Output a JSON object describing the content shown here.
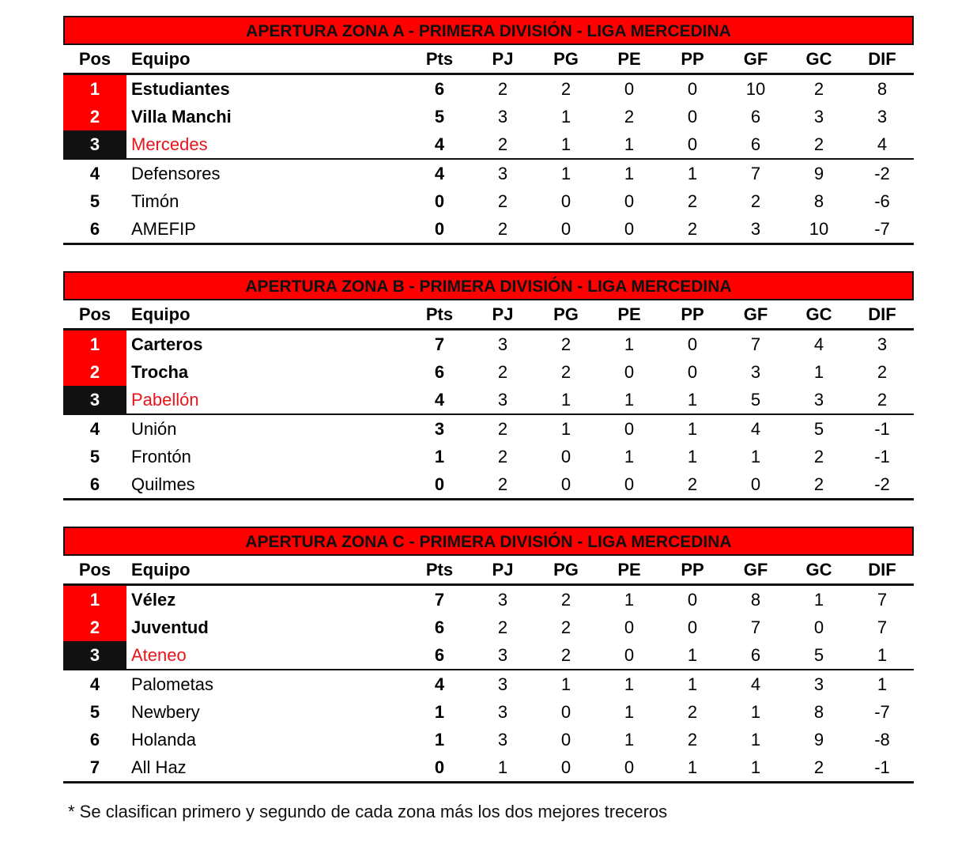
{
  "headers": [
    "Pos",
    "Equipo",
    "Pts",
    "PJ",
    "PG",
    "PE",
    "PP",
    "GF",
    "GC",
    "DIF"
  ],
  "zones": [
    {
      "title": "APERTURA ZONA A - PRIMERA DIVISIÓN - LIGA MERCEDINA",
      "rows": [
        [
          "1",
          "Estudiantes",
          "6",
          "2",
          "2",
          "0",
          "0",
          "10",
          "2",
          "8"
        ],
        [
          "2",
          "Villa Manchi",
          "5",
          "3",
          "1",
          "2",
          "0",
          "6",
          "3",
          "3"
        ],
        [
          "3",
          "Mercedes",
          "4",
          "2",
          "1",
          "1",
          "0",
          "6",
          "2",
          "4"
        ],
        [
          "4",
          "Defensores",
          "4",
          "3",
          "1",
          "1",
          "1",
          "7",
          "9",
          "-2"
        ],
        [
          "5",
          "Timón",
          "0",
          "2",
          "0",
          "0",
          "2",
          "2",
          "8",
          "-6"
        ],
        [
          "6",
          "AMEFIP",
          "0",
          "2",
          "0",
          "0",
          "2",
          "3",
          "10",
          "-7"
        ]
      ]
    },
    {
      "title": "APERTURA ZONA B - PRIMERA DIVISIÓN - LIGA MERCEDINA",
      "rows": [
        [
          "1",
          "Carteros",
          "7",
          "3",
          "2",
          "1",
          "0",
          "7",
          "4",
          "3"
        ],
        [
          "2",
          "Trocha",
          "6",
          "2",
          "2",
          "0",
          "0",
          "3",
          "1",
          "2"
        ],
        [
          "3",
          "Pabellón",
          "4",
          "3",
          "1",
          "1",
          "1",
          "5",
          "3",
          "2"
        ],
        [
          "4",
          "Unión",
          "3",
          "2",
          "1",
          "0",
          "1",
          "4",
          "5",
          "-1"
        ],
        [
          "5",
          "Frontón",
          "1",
          "2",
          "0",
          "1",
          "1",
          "1",
          "2",
          "-1"
        ],
        [
          "6",
          "Quilmes",
          "0",
          "2",
          "0",
          "0",
          "2",
          "0",
          "2",
          "-2"
        ]
      ]
    },
    {
      "title": "APERTURA ZONA C - PRIMERA DIVISIÓN - LIGA MERCEDINA",
      "rows": [
        [
          "1",
          "Vélez",
          "7",
          "3",
          "2",
          "1",
          "0",
          "8",
          "1",
          "7"
        ],
        [
          "2",
          "Juventud",
          "6",
          "2",
          "2",
          "0",
          "0",
          "7",
          "0",
          "7"
        ],
        [
          "3",
          "Ateneo",
          "6",
          "3",
          "2",
          "0",
          "1",
          "6",
          "5",
          "1"
        ],
        [
          "4",
          "Palometas",
          "4",
          "3",
          "1",
          "1",
          "1",
          "4",
          "3",
          "1"
        ],
        [
          "5",
          "Newbery",
          "1",
          "3",
          "0",
          "1",
          "2",
          "1",
          "8",
          "-7"
        ],
        [
          "6",
          "Holanda",
          "1",
          "3",
          "0",
          "1",
          "2",
          "1",
          "9",
          "-8"
        ],
        [
          "7",
          "All Haz",
          "0",
          "1",
          "0",
          "0",
          "1",
          "1",
          "2",
          "-1"
        ]
      ]
    }
  ],
  "footnote": "* Se clasifican primero y segundo de cada zona más los dos mejores treceros",
  "colors": {
    "qualified": "#ff0000",
    "third": "#111111",
    "third_team_text": "#e8141b"
  }
}
